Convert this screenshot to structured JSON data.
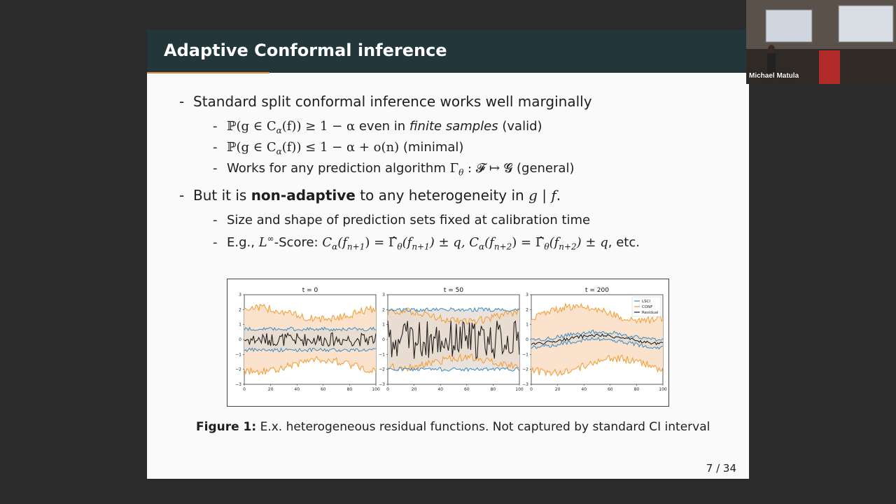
{
  "slide": {
    "title": "Adaptive Conformal inference",
    "page_number": "7 / 34"
  },
  "bullets": {
    "b1": "Standard split conformal inference works well marginally",
    "b1_1_pre": "ℙ(g ∈ C",
    "b1_1_sub": "α",
    "b1_1_mid": "(f)) ≥ 1 − α",
    "b1_1_text1": " even in ",
    "b1_1_italic": "finite samples",
    "b1_1_text2": " (valid)",
    "b1_2_pre": "ℙ(g ∈ C",
    "b1_2_sub": "α",
    "b1_2_mid": "(f)) ≤ 1 − α + o(n)",
    "b1_2_text": " (minimal)",
    "b1_3_text": "Works for any prediction algorithm ",
    "b1_3_gamma": "Γ",
    "b1_3_sub": "θ",
    "b1_3_map": " : 𝓕 ↦ 𝓖",
    "b1_3_tail": " (general)",
    "b2_pre": "But it is ",
    "b2_bold": "non-adaptive",
    "b2_post": " to any heterogeneity in ",
    "b2_math": "g | f",
    "b2_end": ".",
    "b2_1": "Size and shape of prediction sets fixed at calibration time",
    "b2_2_text": "E.g., ",
    "b2_2_L": "L",
    "b2_2_sup": "∞",
    "b2_2_score": "-Score: ",
    "b2_2_c1": "C",
    "b2_2_c1sub": "α",
    "b2_2_c1arg": "(f",
    "b2_2_c1argsub": "n+1",
    "b2_2_c1close": ") = ",
    "b2_2_g1": "Γ̂",
    "b2_2_g1sub": "θ",
    "b2_2_g1arg": "(f",
    "b2_2_g1argsub": "n+1",
    "b2_2_g1close": ") ± q, ",
    "b2_2_c2": "C",
    "b2_2_c2sub": "α",
    "b2_2_c2arg": "(f",
    "b2_2_c2argsub": "n+2",
    "b2_2_c2close": ") = ",
    "b2_2_g2": "Γ̂",
    "b2_2_g2sub": "θ",
    "b2_2_g2arg": "(f",
    "b2_2_g2argsub": "n+2",
    "b2_2_g2close": ") ± q",
    "b2_2_etc": ", etc."
  },
  "figure": {
    "caption_label": "Figure 1:",
    "caption_text": " E.x. heterogeneous residual functions. Not captured by standard CI interval"
  },
  "chart_data": {
    "type": "line",
    "panels": [
      {
        "title": "t = 0",
        "xlim": [
          0,
          100
        ],
        "ylim": [
          -3,
          3
        ],
        "xticks": [
          "0",
          "20",
          "40",
          "60",
          "80",
          "100"
        ],
        "yticks": [
          "3",
          "2",
          "1",
          "0",
          "−1",
          "−2",
          "−3"
        ],
        "lsci_halfwidth": 0.7,
        "conf_halfwidth": 1.75,
        "residual_amp": 0.45,
        "center": "flat"
      },
      {
        "title": "t = 50",
        "xlim": [
          0,
          100
        ],
        "ylim": [
          -3,
          3
        ],
        "xticks": [
          "0",
          "20",
          "40",
          "60",
          "80",
          "100"
        ],
        "yticks": [
          "3",
          "2",
          "1",
          "0",
          "−1",
          "−2",
          "−3"
        ],
        "lsci_halfwidth": 2.0,
        "conf_halfwidth": 1.55,
        "residual_amp": 1.3,
        "center": "flat"
      },
      {
        "title": "t = 200",
        "xlim": [
          0,
          100
        ],
        "ylim": [
          -3,
          3
        ],
        "xticks": [
          "0",
          "20",
          "40",
          "60",
          "80",
          "100"
        ],
        "yticks": [
          "3",
          "2",
          "1",
          "0",
          "−1",
          "−2",
          "−3"
        ],
        "lsci_halfwidth": 0.25,
        "conf_halfwidth": 1.75,
        "residual_amp": 0.1,
        "center": "wave"
      }
    ],
    "legend": {
      "placement": "top-right",
      "entries": [
        "LSCI",
        "CONF",
        "Residual"
      ]
    },
    "colors": {
      "lsci": "#3b8bc2",
      "conf": "#f59a2e",
      "residual": "#222222",
      "band": "#fbe2cc",
      "band_overlap": "#e3d9d2"
    }
  },
  "webcam": {
    "name": "Michael Matula"
  }
}
